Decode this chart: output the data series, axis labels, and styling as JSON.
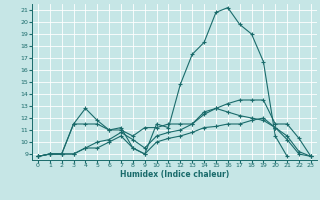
{
  "xlabel": "Humidex (Indice chaleur)",
  "xlim": [
    -0.5,
    23.5
  ],
  "ylim": [
    8.5,
    21.5
  ],
  "xticks": [
    0,
    1,
    2,
    3,
    4,
    5,
    6,
    7,
    8,
    9,
    10,
    11,
    12,
    13,
    14,
    15,
    16,
    17,
    18,
    19,
    20,
    21,
    22,
    23
  ],
  "yticks": [
    9,
    10,
    11,
    12,
    13,
    14,
    15,
    16,
    17,
    18,
    19,
    20,
    21
  ],
  "background_color": "#c6e6e6",
  "grid_color": "#ffffff",
  "line_color": "#1a6b6b",
  "line1_x": [
    0,
    1,
    2,
    3,
    4,
    5,
    6,
    7,
    8,
    9,
    10,
    11,
    12,
    13,
    14,
    15,
    16,
    17,
    18,
    19,
    20,
    21
  ],
  "line1_y": [
    8.8,
    9.0,
    9.0,
    11.5,
    12.8,
    11.8,
    11.0,
    11.2,
    9.5,
    9.0,
    11.5,
    11.2,
    14.8,
    17.3,
    18.3,
    20.8,
    21.2,
    19.8,
    19.0,
    16.7,
    10.5,
    8.8
  ],
  "line2_x": [
    0,
    1,
    2,
    3,
    4,
    5,
    6,
    7,
    8,
    9,
    10,
    11,
    12,
    13,
    14,
    15,
    16,
    17,
    18,
    19,
    20,
    21,
    22,
    23
  ],
  "line2_y": [
    8.8,
    9.0,
    9.0,
    11.5,
    11.5,
    11.5,
    11.0,
    11.0,
    10.5,
    11.2,
    11.2,
    11.5,
    11.5,
    11.5,
    12.5,
    12.8,
    13.2,
    13.5,
    13.5,
    13.5,
    11.5,
    11.5,
    10.3,
    8.8
  ],
  "line3_x": [
    0,
    1,
    2,
    3,
    4,
    5,
    6,
    7,
    8,
    9,
    10,
    11,
    12,
    13,
    14,
    15,
    16,
    17,
    18,
    19,
    20,
    21,
    22,
    23
  ],
  "line3_y": [
    8.8,
    9.0,
    9.0,
    9.0,
    9.5,
    9.5,
    10.0,
    10.5,
    9.5,
    9.0,
    10.0,
    10.3,
    10.5,
    10.8,
    11.2,
    11.3,
    11.5,
    11.5,
    11.8,
    12.0,
    11.2,
    10.2,
    9.0,
    8.8
  ],
  "line4_x": [
    0,
    1,
    2,
    3,
    4,
    5,
    6,
    7,
    8,
    9,
    10,
    11,
    12,
    13,
    14,
    15,
    16,
    17,
    18,
    19,
    20,
    21,
    22,
    23
  ],
  "line4_y": [
    8.8,
    9.0,
    9.0,
    9.0,
    9.5,
    10.0,
    10.2,
    10.8,
    10.2,
    9.5,
    10.5,
    10.8,
    11.0,
    11.5,
    12.3,
    12.8,
    12.5,
    12.2,
    12.0,
    11.8,
    11.2,
    10.5,
    9.2,
    8.8
  ]
}
